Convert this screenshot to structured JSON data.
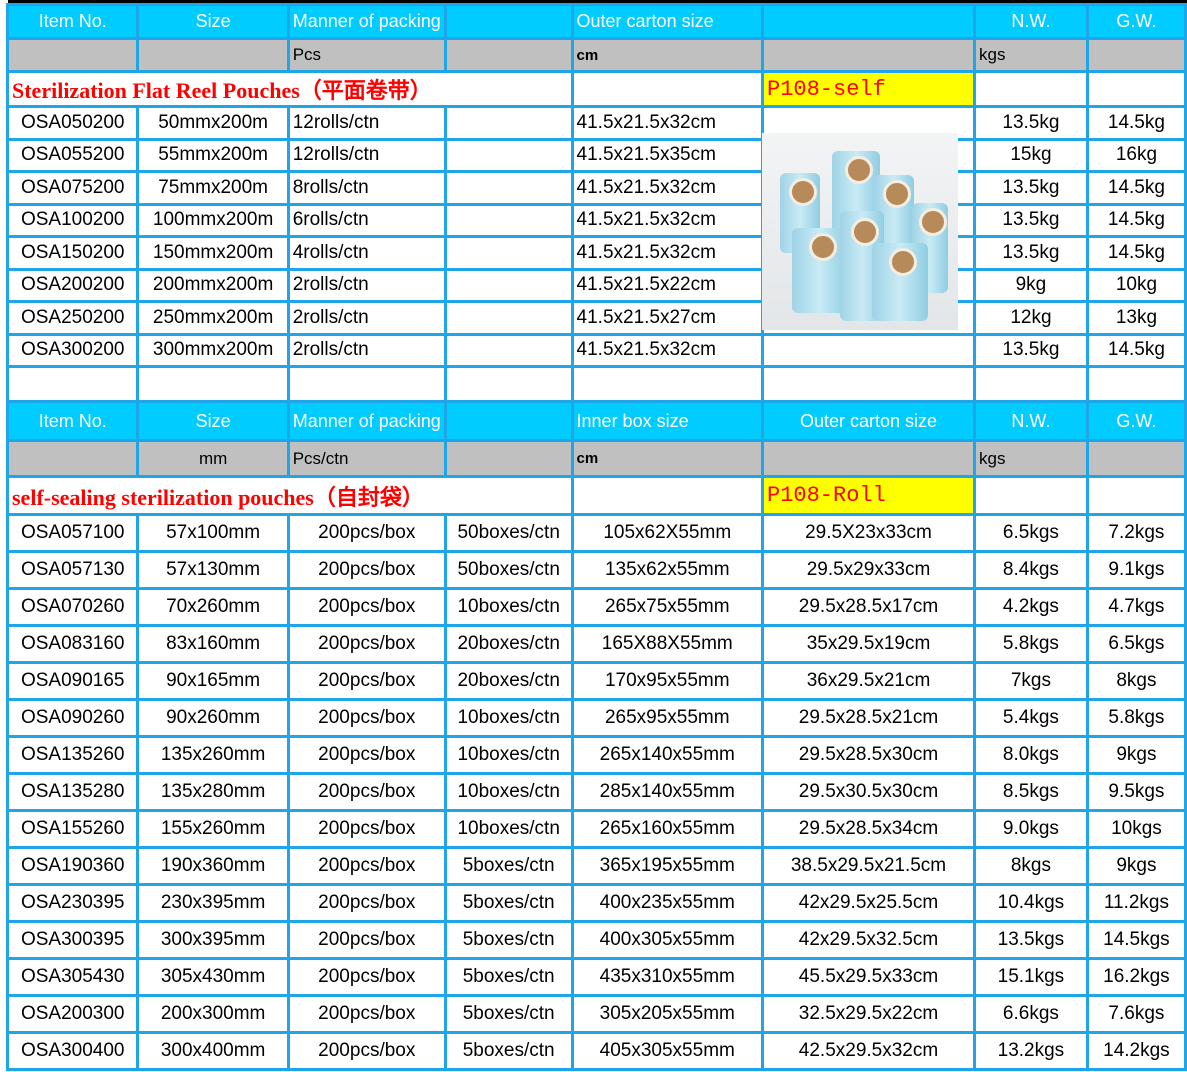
{
  "section1": {
    "header": [
      "Item No.",
      "Size",
      "Manner of packing",
      "",
      "Outer carton size",
      "",
      "N.W.",
      "G.W."
    ],
    "units": [
      "",
      "",
      "Pcs",
      "",
      "cm",
      "",
      "kgs",
      ""
    ],
    "title": "Sterilization Flat Reel Pouches（平面卷带）",
    "code": "P108-self",
    "image": "sterilization-reel-rolls-photo",
    "rows": [
      [
        "OSA050200",
        "50mmx200m",
        "12rolls/ctn",
        "",
        "41.5x21.5x32cm",
        "",
        "13.5kg",
        "14.5kg"
      ],
      [
        "OSA055200",
        "55mmx200m",
        "12rolls/ctn",
        "",
        "41.5x21.5x35cm",
        "",
        "15kg",
        "16kg"
      ],
      [
        "OSA075200",
        "75mmx200m",
        "8rolls/ctn",
        "",
        "41.5x21.5x32cm",
        "",
        "13.5kg",
        "14.5kg"
      ],
      [
        "OSA100200",
        "100mmx200m",
        "6rolls/ctn",
        "",
        "41.5x21.5x32cm",
        "",
        "13.5kg",
        "14.5kg"
      ],
      [
        "OSA150200",
        "150mmx200m",
        "4rolls/ctn",
        "",
        "41.5x21.5x32cm",
        "",
        "13.5kg",
        "14.5kg"
      ],
      [
        "OSA200200",
        "200mmx200m",
        "2rolls/ctn",
        "",
        "41.5x21.5x22cm",
        "",
        "9kg",
        "10kg"
      ],
      [
        "OSA250200",
        "250mmx200m",
        "2rolls/ctn",
        "",
        "41.5x21.5x27cm",
        "",
        "12kg",
        "13kg"
      ],
      [
        "OSA300200",
        "300mmx200m",
        "2rolls/ctn",
        "",
        "41.5x21.5x32cm",
        "",
        "13.5kg",
        "14.5kg"
      ]
    ]
  },
  "section2": {
    "header": [
      "Item No.",
      "Size",
      "Manner of packing",
      "",
      "Inner box size",
      "Outer carton size",
      "N.W.",
      "G.W."
    ],
    "units": [
      "",
      "mm",
      "Pcs/ctn",
      "",
      "cm",
      "",
      "kgs",
      ""
    ],
    "title": "self-sealing sterilization pouches（自封袋）",
    "code": "P108-Roll",
    "rows": [
      [
        "OSA057100",
        "57x100mm",
        "200pcs/box",
        "50boxes/ctn",
        "105x62X55mm",
        "29.5X23x33cm",
        "6.5kgs",
        "7.2kgs"
      ],
      [
        "OSA057130",
        "57x130mm",
        "200pcs/box",
        "50boxes/ctn",
        "135x62x55mm",
        "29.5x29x33cm",
        "8.4kgs",
        "9.1kgs"
      ],
      [
        "OSA070260",
        "70x260mm",
        "200pcs/box",
        "10boxes/ctn",
        "265x75x55mm",
        "29.5x28.5x17cm",
        "4.2kgs",
        "4.7kgs"
      ],
      [
        "OSA083160",
        "83x160mm",
        "200pcs/box",
        "20boxes/ctn",
        "165X88X55mm",
        "35x29.5x19cm",
        "5.8kgs",
        "6.5kgs"
      ],
      [
        "OSA090165",
        "90x165mm",
        "200pcs/box",
        "20boxes/ctn",
        "170x95x55mm",
        "36x29.5x21cm",
        "7kgs",
        "8kgs"
      ],
      [
        "OSA090260",
        "90x260mm",
        "200pcs/box",
        "10boxes/ctn",
        "265x95x55mm",
        "29.5x28.5x21cm",
        "5.4kgs",
        "5.8kgs"
      ],
      [
        "OSA135260",
        "135x260mm",
        "200pcs/box",
        "10boxes/ctn",
        "265x140x55mm",
        "29.5x28.5x30cm",
        "8.0kgs",
        "9kgs"
      ],
      [
        "OSA135280",
        "135x280mm",
        "200pcs/box",
        "10boxes/ctn",
        "285x140x55mm",
        "29.5x30.5x30cm",
        "8.5kgs",
        "9.5kgs"
      ],
      [
        "OSA155260",
        "155x260mm",
        "200pcs/box",
        "10boxes/ctn",
        "265x160x55mm",
        "29.5x28.5x34cm",
        "9.0kgs",
        "10kgs"
      ],
      [
        "OSA190360",
        "190x360mm",
        "200pcs/box",
        "5boxes/ctn",
        "365x195x55mm",
        "38.5x29.5x21.5cm",
        "8kgs",
        "9kgs"
      ],
      [
        "OSA230395",
        "230x395mm",
        "200pcs/box",
        "5boxes/ctn",
        "400x235x55mm",
        "42x29.5x25.5cm",
        "10.4kgs",
        "11.2kgs"
      ],
      [
        "OSA300395",
        "300x395mm",
        "200pcs/box",
        "5boxes/ctn",
        "400x305x55mm",
        "42x29.5x32.5cm",
        "13.5kgs",
        "14.5kgs"
      ],
      [
        "OSA305430",
        "305x430mm",
        "200pcs/box",
        "5boxes/ctn",
        "435x310x55mm",
        "45.5x29.5x33cm",
        "15.1kgs",
        "16.2kgs"
      ],
      [
        "OSA200300",
        "200x300mm",
        "200pcs/box",
        "5boxes/ctn",
        "305x205x55mm",
        "32.5x29.5x22cm",
        "6.6kgs",
        "7.6kgs"
      ],
      [
        "OSA300400",
        "300x400mm",
        "200pcs/box",
        "5boxes/ctn",
        "405x305x55mm",
        "42.5x29.5x32cm",
        "13.2kgs",
        "14.2kgs"
      ]
    ]
  },
  "colors": {
    "header_bg": "#00ccff",
    "border": "#1ea6e8",
    "units_bg": "#c0c0c0",
    "title_red": "#ff0000",
    "code_bg": "#ffff00"
  }
}
